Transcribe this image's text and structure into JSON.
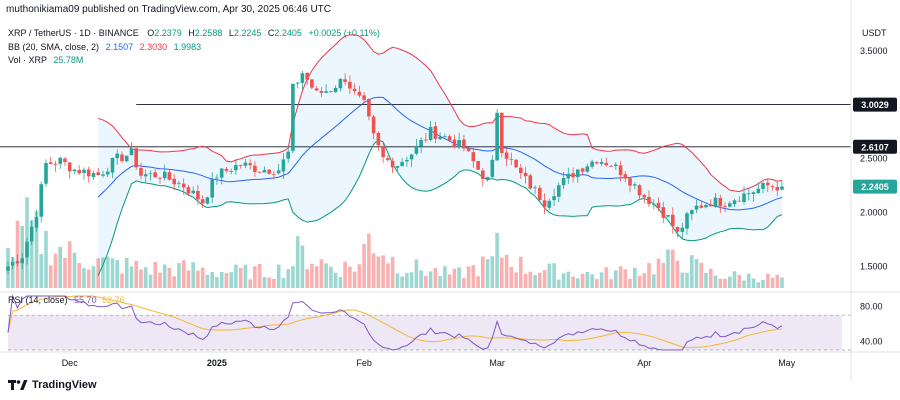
{
  "header": {
    "publisher": "muthonikiama09 published on TradingView.com, Apr 30, 2025 06:46 UTC",
    "currency": "USDT"
  },
  "legend": {
    "symbol": "XRP / TetherUS · 1D · BINANCE",
    "ohlc": [
      {
        "k": "O",
        "v": "2.2379"
      },
      {
        "k": "H",
        "v": "2.2588"
      },
      {
        "k": "L",
        "v": "2.2245"
      },
      {
        "k": "C",
        "v": "2.2405"
      }
    ],
    "change": "+0.0025 (+0.11%)",
    "bb_label": "BB (20, SMA, close, 2)",
    "bb_values": [
      "2.1507",
      "2.3030",
      "1.9983"
    ],
    "vol_label": "Vol · XRP",
    "vol_value": "25.78M"
  },
  "footer": {
    "brand": "TradingView"
  },
  "colors": {
    "up": "#26a69a",
    "down": "#ef5350",
    "bb_basis": "#2962ff",
    "bb_upper": "#f23645",
    "bb_lower": "#089981",
    "bb_fill": "#e3f2fd",
    "rsi": "#7e57c2",
    "rsi_ma": "#f7b731",
    "rsi_band": "#ede7f6"
  },
  "chart_data": {
    "type": "candlestick",
    "y_axis": {
      "ticks": [
        "3.5000",
        "3.0000",
        "2.5000",
        "2.0000",
        "1.5000"
      ],
      "tick_values": [
        3.5,
        3.0,
        2.5,
        2.0,
        1.5
      ],
      "ylim": [
        1.28,
        3.77
      ]
    },
    "price_labels": [
      {
        "text": "3.0029",
        "value": 3.0029,
        "style": "dark"
      },
      {
        "text": "2.6107",
        "value": 2.6107,
        "style": "dark"
      },
      {
        "text": "2.2405",
        "value": 2.2405,
        "style": "up"
      }
    ],
    "horizontal_lines": [
      {
        "value": 3.0029,
        "from": "Dec 15",
        "to": "May 1"
      },
      {
        "value": 2.6107,
        "from": "Nov 16",
        "to": "May 1"
      }
    ],
    "x_axis": {
      "labels": [
        "Dec",
        "2025",
        "Feb",
        "Mar",
        "Apr",
        "May"
      ],
      "label_days": [
        -31,
        0,
        31,
        59,
        90,
        120
      ],
      "first_day": -44,
      "last_day": 119,
      "day_unit": "days from 2025-01-01"
    },
    "price_anchors": [
      [
        -44,
        1.5
      ],
      [
        -41,
        1.6
      ],
      [
        -38,
        2.0
      ],
      [
        -36,
        2.45
      ],
      [
        -33,
        2.48
      ],
      [
        -30,
        2.4
      ],
      [
        -25,
        2.35
      ],
      [
        -21,
        2.5
      ],
      [
        -18,
        2.55
      ],
      [
        -16,
        2.35
      ],
      [
        -12,
        2.35
      ],
      [
        -7,
        2.25
      ],
      [
        -3,
        2.1
      ],
      [
        0,
        2.35
      ],
      [
        5,
        2.45
      ],
      [
        9,
        2.4
      ],
      [
        13,
        2.4
      ],
      [
        15,
        2.55
      ],
      [
        16,
        3.15
      ],
      [
        18,
        3.3
      ],
      [
        21,
        3.1
      ],
      [
        24,
        3.15
      ],
      [
        27,
        3.25
      ],
      [
        29,
        3.1
      ],
      [
        31,
        3.0
      ],
      [
        33,
        2.7
      ],
      [
        35,
        2.5
      ],
      [
        38,
        2.45
      ],
      [
        41,
        2.55
      ],
      [
        45,
        2.75
      ],
      [
        48,
        2.7
      ],
      [
        52,
        2.6
      ],
      [
        55,
        2.4
      ],
      [
        57,
        2.3
      ],
      [
        58,
        2.45
      ],
      [
        59,
        2.95
      ],
      [
        60,
        2.6
      ],
      [
        63,
        2.4
      ],
      [
        66,
        2.25
      ],
      [
        69,
        2.1
      ],
      [
        72,
        2.25
      ],
      [
        76,
        2.4
      ],
      [
        80,
        2.5
      ],
      [
        83,
        2.45
      ],
      [
        86,
        2.35
      ],
      [
        90,
        2.15
      ],
      [
        93,
        2.05
      ],
      [
        95,
        1.95
      ],
      [
        97,
        1.8
      ],
      [
        99,
        1.95
      ],
      [
        101,
        2.05
      ],
      [
        104,
        2.1
      ],
      [
        107,
        2.1
      ],
      [
        110,
        2.15
      ],
      [
        113,
        2.2
      ],
      [
        116,
        2.25
      ],
      [
        119,
        2.2405
      ]
    ],
    "volume_anchors": [
      [
        -44,
        0.5
      ],
      [
        -40,
        0.95
      ],
      [
        -36,
        0.7
      ],
      [
        -32,
        0.55
      ],
      [
        -25,
        0.4
      ],
      [
        -15,
        0.3
      ],
      [
        -5,
        0.3
      ],
      [
        0,
        0.25
      ],
      [
        10,
        0.25
      ],
      [
        15,
        0.3
      ],
      [
        17,
        0.55
      ],
      [
        25,
        0.3
      ],
      [
        30,
        0.35
      ],
      [
        32,
        0.8
      ],
      [
        38,
        0.35
      ],
      [
        50,
        0.2
      ],
      [
        58,
        0.4
      ],
      [
        59,
        0.6
      ],
      [
        65,
        0.3
      ],
      [
        80,
        0.2
      ],
      [
        90,
        0.3
      ],
      [
        97,
        0.45
      ],
      [
        105,
        0.2
      ],
      [
        119,
        0.15
      ]
    ],
    "bollinger_bands": {
      "period": 20,
      "stdev": 2,
      "upper_last": 2.303,
      "basis_last": 2.1507,
      "lower_last": 1.9983
    },
    "rsi": {
      "label": "RSI (14, close)",
      "value": "55.70",
      "ma_value": "52.76",
      "ticks": [
        "80.00",
        "40.00"
      ],
      "tick_values": [
        80,
        40
      ],
      "band": [
        70,
        30
      ],
      "ylim": [
        30,
        92
      ]
    }
  }
}
